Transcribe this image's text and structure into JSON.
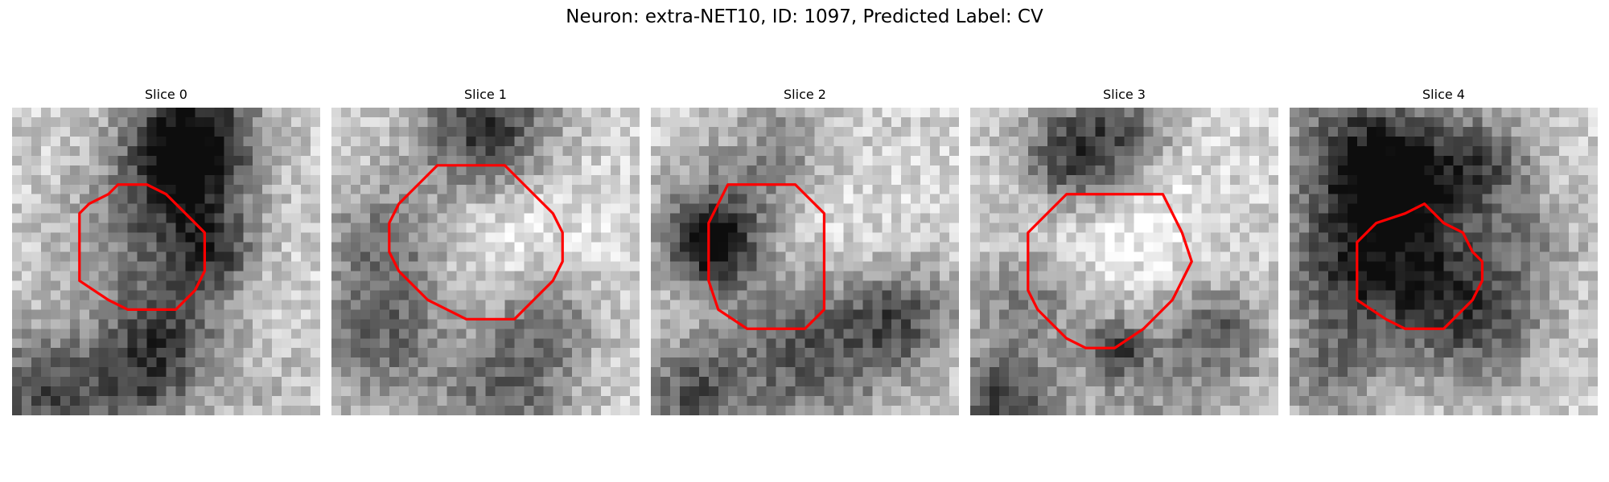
{
  "figure": {
    "title": "Neuron: extra-NET10, ID: 1097, Predicted Label: CV"
  },
  "panels": [
    {
      "title": "Slice 0"
    },
    {
      "title": "Slice 1"
    },
    {
      "title": "Slice 2"
    },
    {
      "title": "Slice 3"
    },
    {
      "title": "Slice 4"
    }
  ],
  "colors": {
    "contour": "#ff0000",
    "background": "#ffffff"
  },
  "colormap": "gray"
}
